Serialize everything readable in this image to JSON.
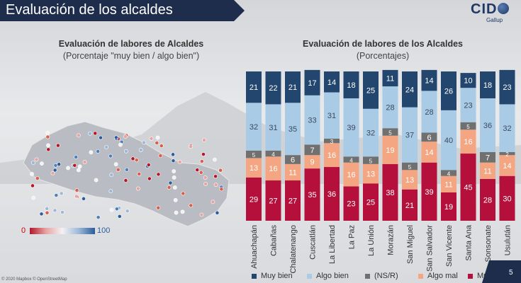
{
  "header": {
    "title": "Evaluación de los alcaldes"
  },
  "logo": {
    "brand": "CID",
    "sub": "Gallup"
  },
  "map": {
    "title": "Evaluación de labores de Alcaldes",
    "subtitle": "(Porcentaje \"muy bien / algo bien\")",
    "scale_min": "0",
    "scale_max": "100"
  },
  "chart_data": {
    "type": "bar",
    "stacked": true,
    "orientation": "vertical",
    "title": "Evaluación de labores de los Alcaldes",
    "subtitle": "(Porcentajes)",
    "categories": [
      "Ahuachapán",
      "Cabañas",
      "Chalatenango",
      "Cuscatlán",
      "La Libertad",
      "La Paz",
      "La Unión",
      "Morazán",
      "San Miguel",
      "San Salvador",
      "San Vicente",
      "Santa Ana",
      "Sonsonate",
      "Usulután"
    ],
    "series": [
      {
        "name": "Muy mal",
        "color": "#b5103c",
        "values": [
          29,
          27,
          27,
          35,
          36,
          23,
          25,
          38,
          21,
          39,
          19,
          45,
          28,
          30
        ]
      },
      {
        "name": "Algo mal",
        "color": "#f4a582",
        "values": [
          13,
          16,
          11,
          9,
          16,
          16,
          13,
          19,
          13,
          14,
          11,
          16,
          11,
          14
        ]
      },
      {
        "name": "(NS/R)",
        "color": "#707070",
        "values": [
          5,
          4,
          6,
          7,
          3,
          4,
          5,
          5,
          5,
          6,
          4,
          5,
          7,
          2
        ]
      },
      {
        "name": "Algo bien",
        "color": "#a9cbe6",
        "values": [
          32,
          31,
          35,
          33,
          31,
          39,
          32,
          28,
          37,
          28,
          40,
          23,
          36,
          32
        ]
      },
      {
        "name": "Muy bien",
        "color": "#23466e",
        "values": [
          21,
          22,
          21,
          17,
          14,
          18,
          25,
          11,
          24,
          14,
          26,
          10,
          18,
          23
        ]
      }
    ],
    "legend": [
      "Muy bien",
      "Algo bien",
      "(NS/R)",
      "Algo mal",
      "Muy mal"
    ],
    "legend_position": "bottom",
    "ylim": [
      0,
      100
    ],
    "grid": false
  },
  "footer": {
    "page": "5",
    "copyright": "© 2020 Mapbox © OpenStreetMap"
  }
}
